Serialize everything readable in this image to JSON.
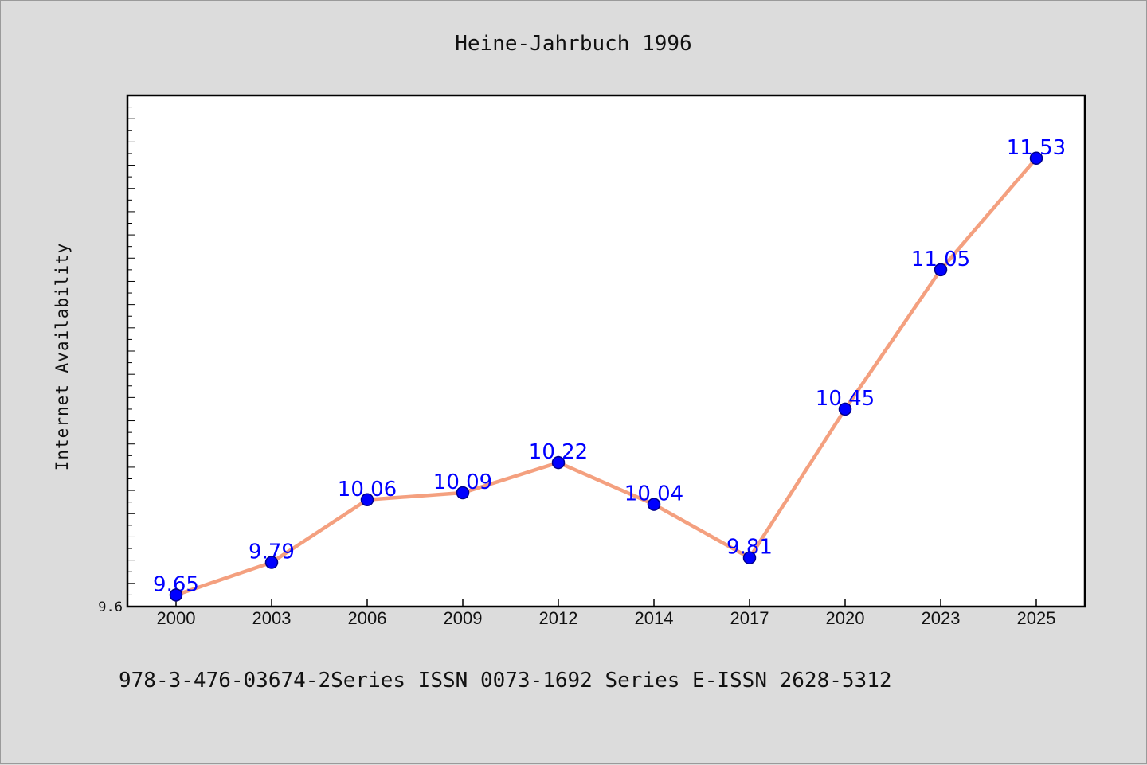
{
  "chart_data": {
    "type": "line",
    "title": "Heine-Jahrbuch 1996",
    "xlabel": "",
    "ylabel": "Internet Availability",
    "categories": [
      "2000",
      "2003",
      "2006",
      "2009",
      "2012",
      "2014",
      "2017",
      "2020",
      "2023",
      "2025"
    ],
    "series": [
      {
        "values": [
          9.65,
          9.79,
          10.06,
          10.09,
          10.22,
          10.04,
          9.81,
          10.45,
          11.05,
          11.53
        ]
      }
    ],
    "ylim": [
      9.6,
      11.8
    ],
    "y_tick_labels": [
      "9.6"
    ],
    "grid": false,
    "legend": "none",
    "colors": {
      "line": "#f4a07f",
      "marker": "#0000ff",
      "marker_edge": "#00008b",
      "label": "#0000ff",
      "plot_bg": "#ffffff",
      "figure_bg": "#dcdcdc"
    }
  },
  "footer": {
    "text": "978-3-476-03674-2Series ISSN 0073-1692 Series E-ISSN 2628-5312"
  }
}
